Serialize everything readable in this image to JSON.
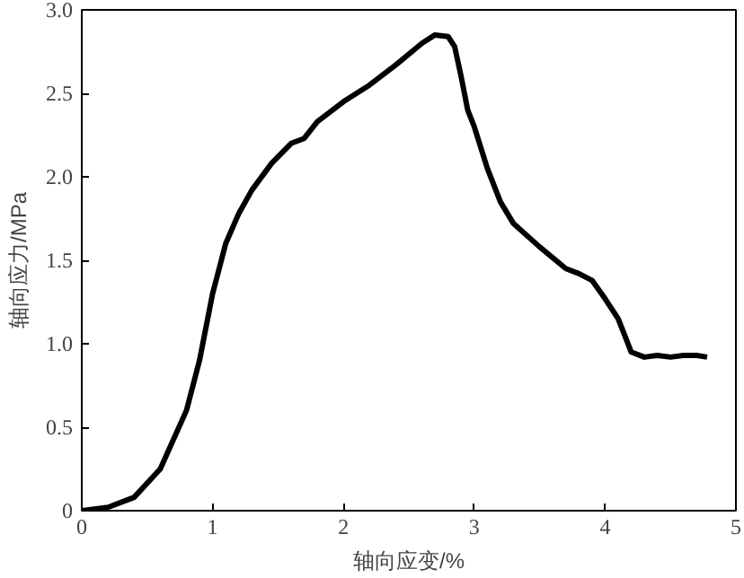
{
  "chart_data": {
    "type": "line",
    "xlabel": "轴向应变/%",
    "ylabel": "轴向应力/MPa",
    "xlim": [
      0,
      5
    ],
    "ylim": [
      0,
      3.0
    ],
    "xticks": [
      0,
      1,
      2,
      3,
      4,
      5
    ],
    "yticks": [
      0,
      {
        "value": 0.5,
        "label": "0.5"
      },
      {
        "value": 1,
        "label": "1.0"
      },
      {
        "value": 1.5,
        "label": "1.5"
      },
      {
        "value": 2,
        "label": "2.0"
      },
      {
        "value": 2.5,
        "label": "2.5"
      },
      {
        "value": 3,
        "label": "3.0"
      }
    ],
    "grid": false,
    "line_style": "solid",
    "series": [
      {
        "color": "#000000",
        "x": [
          0,
          0.2,
          0.4,
          0.6,
          0.8,
          0.9,
          1.0,
          1.1,
          1.2,
          1.3,
          1.45,
          1.6,
          1.7,
          1.8,
          2.0,
          2.2,
          2.4,
          2.6,
          2.7,
          2.8,
          2.85,
          2.9,
          2.95,
          3.0,
          3.1,
          3.2,
          3.3,
          3.5,
          3.7,
          3.8,
          3.9,
          4.0,
          4.1,
          4.15,
          4.2,
          4.3,
          4.4,
          4.5,
          4.6,
          4.7,
          4.78
        ],
        "values": [
          0,
          0.02,
          0.08,
          0.25,
          0.6,
          0.9,
          1.3,
          1.6,
          1.78,
          1.92,
          2.08,
          2.2,
          2.23,
          2.33,
          2.45,
          2.55,
          2.67,
          2.8,
          2.85,
          2.84,
          2.78,
          2.6,
          2.4,
          2.3,
          2.05,
          1.85,
          1.72,
          1.58,
          1.45,
          1.42,
          1.38,
          1.27,
          1.15,
          1.05,
          0.95,
          0.92,
          0.93,
          0.92,
          0.93,
          0.93,
          0.92
        ]
      }
    ]
  }
}
